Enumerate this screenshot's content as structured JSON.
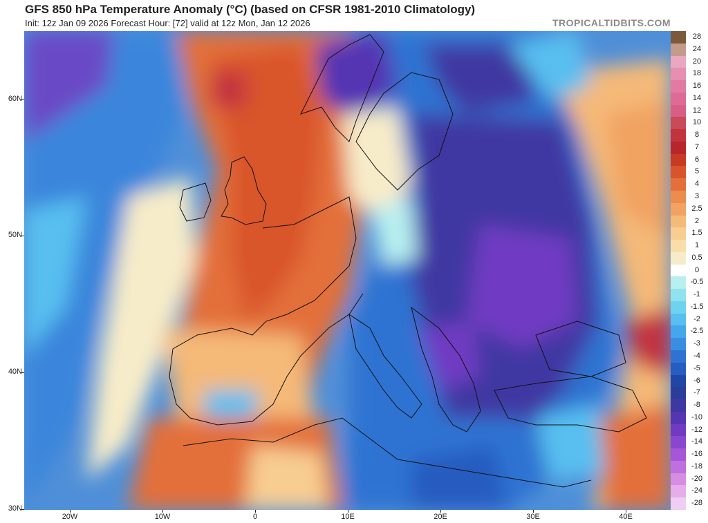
{
  "header": {
    "title": "GFS 850 hPa Temperature Anomaly (°C) (based on CFSR 1981-2010 Climatology)",
    "subtitle": "Init: 12z Jan 09 2026   Forecast Hour: [72]   valid at 12z Mon, Jan 12 2026",
    "brand": "TROPICALTIDBITS.COM"
  },
  "axes": {
    "y_labels": [
      "60N",
      "50N",
      "40N",
      "30N"
    ],
    "x_labels": [
      "20W",
      "10W",
      "0",
      "10E",
      "20E",
      "30E",
      "40E"
    ]
  },
  "legend": {
    "labels": [
      "28",
      "24",
      "20",
      "18",
      "16",
      "14",
      "12",
      "10",
      "8",
      "7",
      "6",
      "5",
      "4",
      "3",
      "2.5",
      "2",
      "1.5",
      "1",
      "0.5",
      "0",
      "-0.5",
      "-1",
      "-1.5",
      "-2",
      "-2.5",
      "-3",
      "-4",
      "-5",
      "-6",
      "-7",
      "-8",
      "-10",
      "-12",
      "-14",
      "-16",
      "-18",
      "-20",
      "-24",
      "-28"
    ],
    "colors": [
      "#7a5a3a",
      "#c49a8a",
      "#e9a7c0",
      "#e58fb1",
      "#e27aa3",
      "#de6b95",
      "#d75f86",
      "#c94a58",
      "#c2333f",
      "#b8262b",
      "#c93a24",
      "#d9542a",
      "#e3703a",
      "#ec8c4e",
      "#f1a362",
      "#f5b978",
      "#f8cd92",
      "#f9deaa",
      "#f7ecc9",
      "#ffffff",
      "#b8efef",
      "#8fe3ee",
      "#6ed3ef",
      "#58bff0",
      "#45a6ec",
      "#3a8ee2",
      "#2f73d2",
      "#275cc0",
      "#1f47a6",
      "#2b3c9a",
      "#3f37a2",
      "#5535b2",
      "#6f3bc2",
      "#8a46cf",
      "#a656d8",
      "#c06fde",
      "#d58ee2",
      "#e5adea",
      "#f0cdf2"
    ]
  },
  "map": {
    "region": "Europe / North Atlantic / Mediterranean",
    "colors": {
      "warm_strong": "#d9542a",
      "warm_mid": "#ec8c4e",
      "warm_weak": "#f8cd92",
      "cold_mid": "#3a8ee2",
      "cold_strong": "#5535b2",
      "coast": "#111111"
    }
  }
}
